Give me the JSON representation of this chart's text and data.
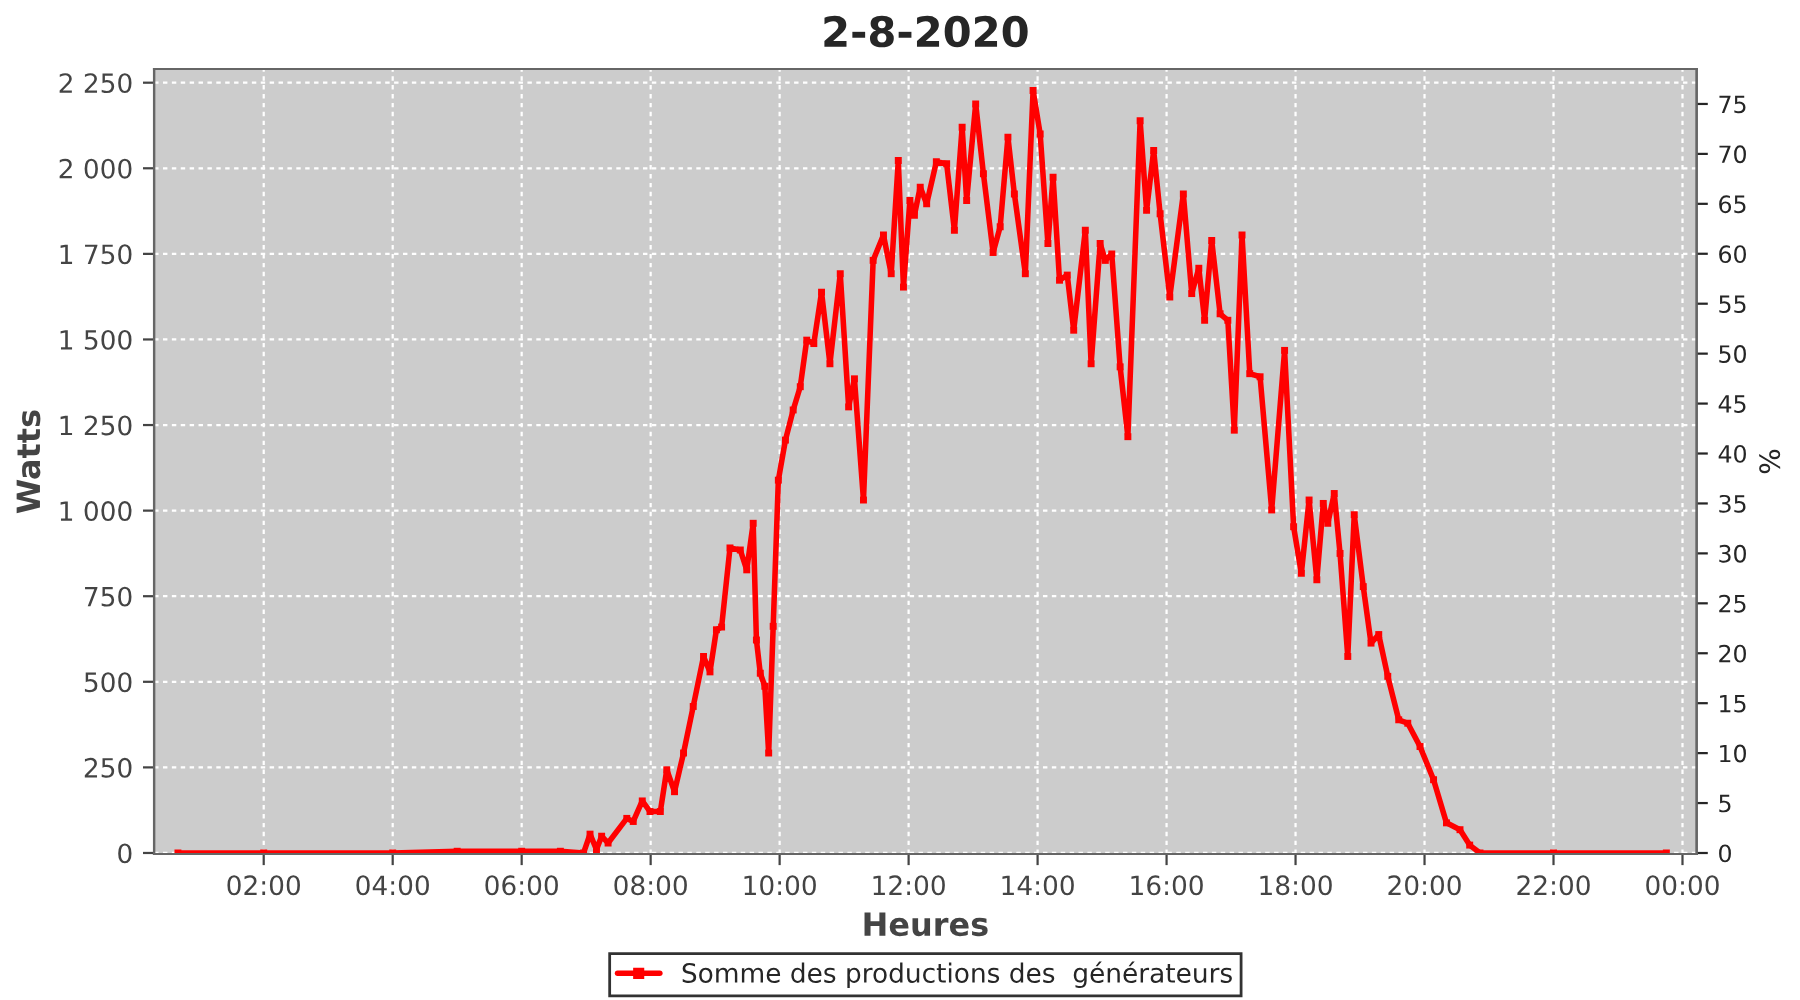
{
  "chart_data": {
    "type": "line",
    "title": "2-8-2020",
    "xlabel": "Heures",
    "ylabel": "Watts",
    "y2label": "%",
    "xlim": [
      0.3,
      24.22
    ],
    "xticks": [
      {
        "value": 2,
        "label": "02:00"
      },
      {
        "value": 4,
        "label": "04:00"
      },
      {
        "value": 6,
        "label": "06:00"
      },
      {
        "value": 8,
        "label": "08:00"
      },
      {
        "value": 10,
        "label": "10:00"
      },
      {
        "value": 12,
        "label": "12:00"
      },
      {
        "value": 14,
        "label": "14:00"
      },
      {
        "value": 16,
        "label": "16:00"
      },
      {
        "value": 18,
        "label": "18:00"
      },
      {
        "value": 20,
        "label": "20:00"
      },
      {
        "value": 22,
        "label": "22:00"
      },
      {
        "value": 24,
        "label": "00:00"
      }
    ],
    "ylim": [
      -3,
      2290
    ],
    "yticks": [
      0,
      250,
      500,
      750,
      {
        "value": 1000,
        "label": "1 000"
      },
      {
        "value": 1250,
        "label": "1 250"
      },
      {
        "value": 1500,
        "label": "1 500"
      },
      {
        "value": 1750,
        "label": "1 750"
      },
      {
        "value": 2000,
        "label": "2 000"
      },
      {
        "value": 2250,
        "label": "2 250"
      }
    ],
    "y2lim": [
      -0.1,
      78.5
    ],
    "y2ticks": [
      0,
      5,
      10,
      15,
      20,
      25,
      30,
      35,
      40,
      45,
      50,
      55,
      60,
      65,
      70,
      75
    ],
    "grid": true,
    "legend": "bottom",
    "marker": "square",
    "line_style": "solid",
    "series": [
      {
        "name": "Somme des productions des  générateurs",
        "color": "#ff0000",
        "x": [
          0.67,
          2,
          4,
          5,
          6,
          6.6,
          6.96,
          7.06,
          7.16,
          7.24,
          7.34,
          7.63,
          7.73,
          7.87,
          7.99,
          8.15,
          8.25,
          8.37,
          8.51,
          8.66,
          8.82,
          8.92,
          9.02,
          9.1,
          9.23,
          9.39,
          9.49,
          9.59,
          9.64,
          9.7,
          9.77,
          9.83,
          9.9,
          9.98,
          10.09,
          10.21,
          10.32,
          10.42,
          10.53,
          10.65,
          10.78,
          10.94,
          11.07,
          11.16,
          11.3,
          11.45,
          11.61,
          11.73,
          11.84,
          11.92,
          12.02,
          12.09,
          12.18,
          12.28,
          12.43,
          12.59,
          12.71,
          12.83,
          12.9,
          13.04,
          13.16,
          13.31,
          13.42,
          13.54,
          13.64,
          13.81,
          13.93,
          14.04,
          14.16,
          14.24,
          14.34,
          14.46,
          14.56,
          14.74,
          14.83,
          14.97,
          15.05,
          15.15,
          15.28,
          15.4,
          15.59,
          15.69,
          15.8,
          15.9,
          16.05,
          16.26,
          16.39,
          16.5,
          16.59,
          16.7,
          16.83,
          16.95,
          17.05,
          17.17,
          17.29,
          17.45,
          17.63,
          17.83,
          17.97,
          18.09,
          18.21,
          18.33,
          18.43,
          18.5,
          18.6,
          18.69,
          18.81,
          18.91,
          19.05,
          19.17,
          19.29,
          19.43,
          19.6,
          19.74,
          19.93,
          20.14,
          20.34,
          20.55,
          20.7,
          20.86,
          22,
          23.75
        ],
        "values": [
          0,
          0,
          0,
          5,
          5,
          5,
          0,
          55,
          10,
          49,
          29,
          101,
          92,
          152,
          121,
          121,
          243,
          179,
          292,
          428,
          574,
          529,
          652,
          660,
          891,
          885,
          827,
          963,
          622,
          525,
          487,
          292,
          662,
          1089,
          1206,
          1294,
          1362,
          1498,
          1488,
          1638,
          1429,
          1692,
          1303,
          1385,
          1031,
          1731,
          1805,
          1692,
          2023,
          1653,
          1906,
          1863,
          1945,
          1896,
          2019,
          2013,
          1819,
          2120,
          1906,
          2188,
          1984,
          1754,
          1829,
          2091,
          1925,
          1692,
          2227,
          2100,
          1780,
          1974,
          1673,
          1688,
          1527,
          1819,
          1429,
          1780,
          1731,
          1750,
          1420,
          1216,
          2139,
          1877,
          2052,
          1867,
          1624,
          1925,
          1634,
          1708,
          1556,
          1789,
          1575,
          1556,
          1235,
          1805,
          1400,
          1391,
          1002,
          1468,
          953,
          817,
          1031,
          798,
          1021,
          963,
          1050,
          875,
          574,
          988,
          778,
          613,
          638,
          516,
          389,
          379,
          311,
          214,
          88,
          68,
          23,
          0,
          0,
          0
        ]
      }
    ]
  }
}
